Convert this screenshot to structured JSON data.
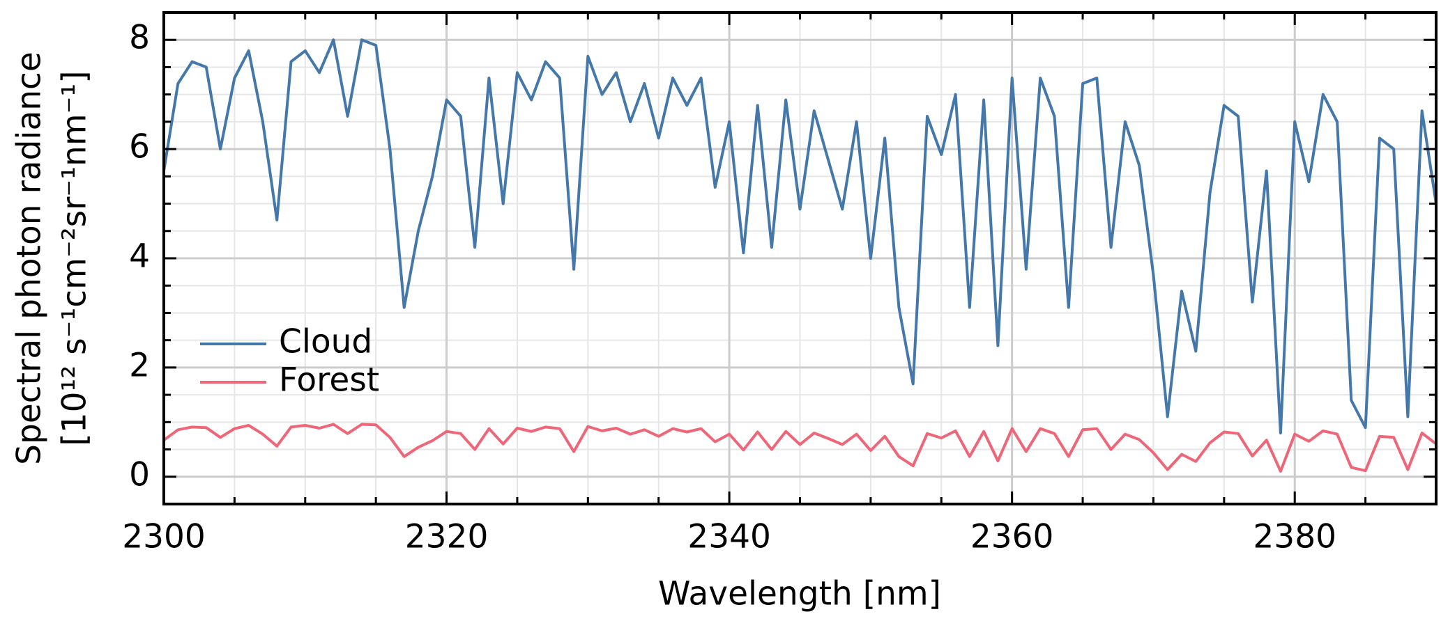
{
  "chart_data": {
    "type": "line",
    "xlabel": "Wavelength [nm]",
    "ylabel": [
      "Spectral photon radiance",
      "[10¹² s⁻¹cm⁻²sr⁻¹nm⁻¹]"
    ],
    "x": [
      2300,
      2301,
      2302,
      2303,
      2304,
      2305,
      2306,
      2307,
      2308,
      2309,
      2310,
      2311,
      2312,
      2313,
      2314,
      2315,
      2316,
      2317,
      2318,
      2319,
      2320,
      2321,
      2322,
      2323,
      2324,
      2325,
      2326,
      2327,
      2328,
      2329,
      2330,
      2331,
      2332,
      2333,
      2334,
      2335,
      2336,
      2337,
      2338,
      2339,
      2340,
      2341,
      2342,
      2343,
      2344,
      2345,
      2346,
      2347,
      2348,
      2349,
      2350,
      2351,
      2352,
      2353,
      2354,
      2355,
      2356,
      2357,
      2358,
      2359,
      2360,
      2361,
      2362,
      2363,
      2364,
      2365,
      2366,
      2367,
      2368,
      2369,
      2370,
      2371,
      2372,
      2373,
      2374,
      2375,
      2376,
      2377,
      2378,
      2379,
      2380,
      2381,
      2382,
      2383,
      2384,
      2385,
      2386,
      2387,
      2388,
      2389,
      2390
    ],
    "series": [
      {
        "name": "Cloud",
        "color": "#4477aa",
        "values": [
          5.6,
          7.2,
          7.6,
          7.5,
          6.0,
          7.3,
          7.8,
          6.5,
          4.7,
          7.6,
          7.8,
          7.4,
          8.0,
          6.6,
          8.0,
          7.9,
          6.0,
          3.1,
          4.5,
          5.5,
          6.9,
          6.6,
          4.2,
          7.3,
          5.0,
          7.4,
          6.9,
          7.6,
          7.3,
          3.8,
          7.7,
          7.0,
          7.4,
          6.5,
          7.2,
          6.2,
          7.3,
          6.8,
          7.3,
          5.3,
          6.5,
          4.1,
          6.8,
          4.2,
          6.9,
          4.9,
          6.7,
          5.8,
          4.9,
          6.5,
          4.0,
          6.2,
          3.1,
          1.7,
          6.6,
          5.9,
          7.0,
          3.1,
          6.9,
          2.4,
          7.3,
          3.8,
          7.3,
          6.6,
          3.1,
          7.2,
          7.3,
          4.2,
          6.5,
          5.7,
          3.7,
          1.1,
          3.4,
          2.3,
          5.2,
          6.8,
          6.6,
          3.2,
          5.6,
          0.8,
          6.5,
          5.4,
          7.0,
          6.5,
          1.4,
          0.9,
          6.2,
          6.0,
          1.1,
          6.7,
          5.0
        ]
      },
      {
        "name": "Forest",
        "color": "#ee6677",
        "values": [
          0.67,
          0.86,
          0.91,
          0.9,
          0.72,
          0.88,
          0.94,
          0.78,
          0.56,
          0.91,
          0.94,
          0.89,
          0.96,
          0.79,
          0.96,
          0.95,
          0.72,
          0.37,
          0.54,
          0.66,
          0.83,
          0.79,
          0.5,
          0.88,
          0.6,
          0.89,
          0.83,
          0.91,
          0.88,
          0.46,
          0.92,
          0.84,
          0.89,
          0.78,
          0.86,
          0.74,
          0.88,
          0.82,
          0.88,
          0.64,
          0.78,
          0.49,
          0.82,
          0.5,
          0.83,
          0.59,
          0.8,
          0.7,
          0.59,
          0.78,
          0.48,
          0.74,
          0.37,
          0.2,
          0.79,
          0.71,
          0.84,
          0.37,
          0.83,
          0.29,
          0.88,
          0.46,
          0.88,
          0.79,
          0.37,
          0.86,
          0.88,
          0.5,
          0.78,
          0.68,
          0.44,
          0.13,
          0.41,
          0.28,
          0.62,
          0.82,
          0.79,
          0.38,
          0.67,
          0.1,
          0.78,
          0.65,
          0.84,
          0.78,
          0.17,
          0.11,
          0.74,
          0.72,
          0.13,
          0.8,
          0.6
        ]
      }
    ],
    "xlim": [
      2300,
      2390
    ],
    "ylim": [
      -0.5,
      8.5
    ],
    "xticks": [
      2300,
      2320,
      2340,
      2360,
      2380
    ],
    "yticks": [
      0,
      2,
      4,
      6,
      8
    ],
    "xminorticks": [
      2305,
      2310,
      2315,
      2325,
      2330,
      2335,
      2345,
      2350,
      2355,
      2365,
      2370,
      2375,
      2385
    ],
    "yminorticks": [
      0.5,
      1,
      1.5,
      2.5,
      3,
      3.5,
      4.5,
      5,
      5.5,
      6.5,
      7,
      7.5
    ],
    "grid": true,
    "legend": "lower left"
  }
}
